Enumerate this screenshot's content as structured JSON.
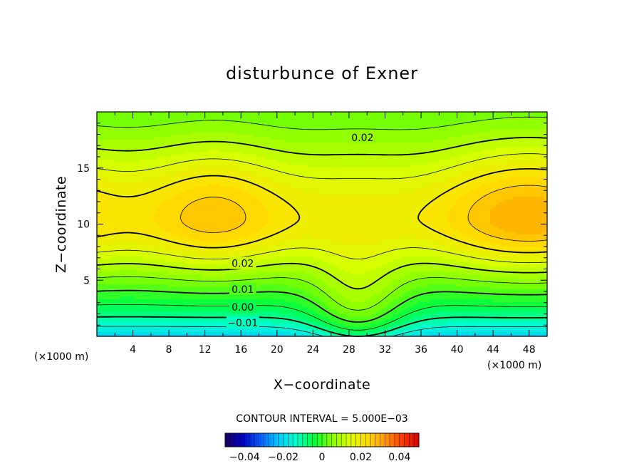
{
  "colors": {
    "background": "#ffffff",
    "line": "#000000",
    "colorbar_stops": [
      "#1a0060",
      "#0000c8",
      "#0060ff",
      "#00c8ff",
      "#00ffd0",
      "#00ff40",
      "#80ff00",
      "#d8ff00",
      "#ffe000",
      "#ffa000",
      "#ff4000",
      "#d80000"
    ]
  },
  "chart_data": {
    "type": "heatmap",
    "title": "disturbunce of Exner",
    "xlabel": "X−coordinate",
    "ylabel": "Z−coordinate",
    "x_unit_left": "(×1000 m)",
    "x_unit_right": "(×1000 m)",
    "xlim": [
      0,
      50
    ],
    "ylim": [
      0,
      20
    ],
    "x_ticks": [
      4,
      8,
      12,
      16,
      20,
      24,
      28,
      32,
      36,
      40,
      44,
      48
    ],
    "x_tick_labels": [
      "4",
      "8",
      "12",
      "16",
      "20",
      "24",
      "28",
      "32",
      "36",
      "40",
      "44",
      "48"
    ],
    "y_ticks": [
      5,
      10,
      15
    ],
    "y_tick_labels": [
      "5",
      "10",
      "15"
    ],
    "contour_interval_text": "CONTOUR INTERVAL = 5.000E−03",
    "contour_interval": 0.005,
    "field_range": [
      -0.015,
      0.03
    ],
    "colorbar": {
      "range": [
        -0.05,
        0.05
      ],
      "ticks": [
        -0.04,
        -0.02,
        0,
        0.02,
        0.04
      ],
      "tick_labels": [
        "−0.04",
        "−0.02",
        "0",
        "0.02",
        "0.04"
      ]
    },
    "contour_labels": [
      {
        "text": "0.02",
        "x": 29.5,
        "z": 17.7
      },
      {
        "text": "0.02",
        "x": 16.2,
        "z": 6.5
      },
      {
        "text": "0.01",
        "x": 16.2,
        "z": 4.2
      },
      {
        "text": "0.00",
        "x": 16.2,
        "z": 2.6
      },
      {
        "text": "−0.01",
        "x": 16.2,
        "z": 1.2
      }
    ]
  }
}
